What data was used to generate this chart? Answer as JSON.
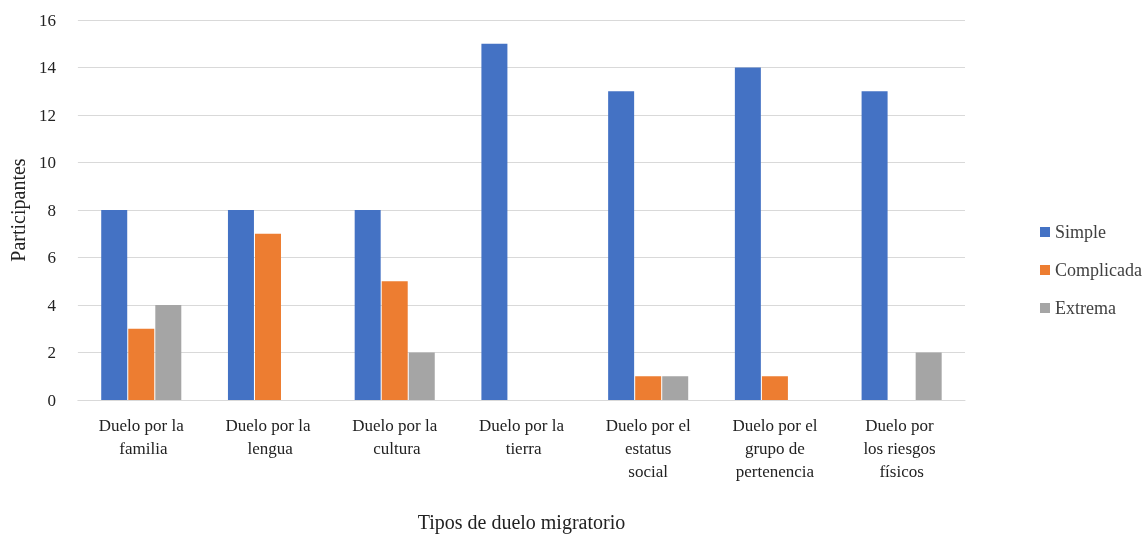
{
  "chart_data": {
    "type": "bar",
    "xlabel": "Tipos de duelo migratorio",
    "ylabel": "Participantes",
    "categories": [
      "Duelo por la familia",
      "Duelo por la lengua",
      "Duelo por la cultura",
      "Duelo por la tierra",
      "Duelo por el estatus social",
      "Duelo por el grupo de pertenencia",
      "Duelo por los riesgos físicos"
    ],
    "series": [
      {
        "name": "Simple",
        "color": "#4472c4",
        "values": [
          8,
          8,
          8,
          15,
          13,
          14,
          13
        ]
      },
      {
        "name": "Complicada",
        "color": "#ed7d31",
        "values": [
          3,
          7,
          5,
          0,
          1,
          1,
          0
        ]
      },
      {
        "name": "Extrema",
        "color": "#a5a5a5",
        "values": [
          4,
          0,
          2,
          0,
          1,
          0,
          2
        ]
      }
    ],
    "ylim": [
      0,
      16
    ],
    "yticks": [
      0,
      2,
      4,
      6,
      8,
      10,
      12,
      14,
      16
    ],
    "grid": "y",
    "legend": "right"
  }
}
